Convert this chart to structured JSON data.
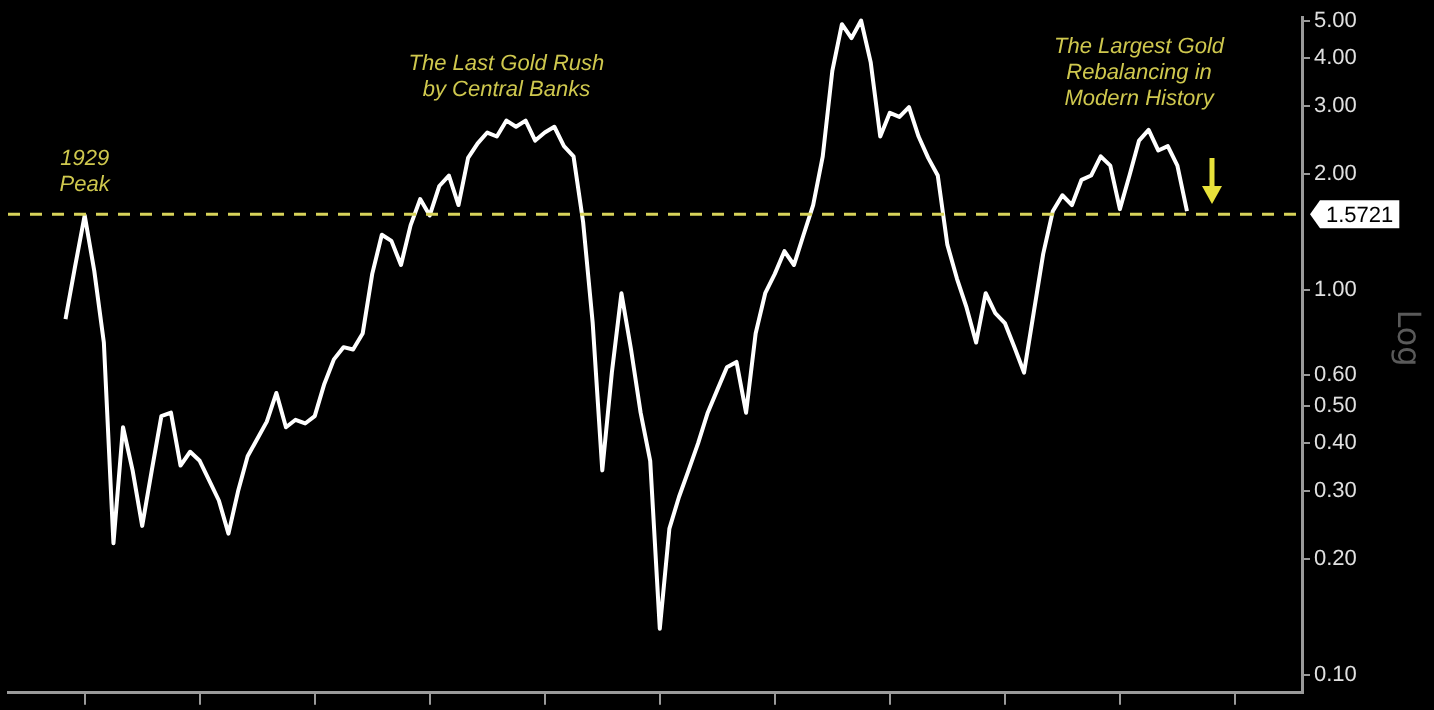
{
  "chart_data": {
    "type": "line",
    "log": "y",
    "tick_labels": "y",
    "marker": "none",
    "line_style": "solid",
    "categories": [
      null,
      null,
      null,
      null,
      null,
      null,
      null,
      null,
      null,
      null,
      null,
      null,
      null,
      null,
      null,
      null,
      null,
      null,
      null,
      null,
      null,
      null,
      null,
      null,
      null,
      null,
      null,
      null,
      null,
      null,
      null,
      null,
      null,
      null,
      null,
      null,
      null,
      null,
      null,
      null,
      null,
      null,
      null,
      null,
      null,
      null,
      null,
      null,
      null,
      null,
      null,
      null,
      null,
      null,
      null,
      null,
      null,
      null,
      null,
      null,
      null,
      null,
      null,
      null,
      null,
      null,
      null,
      null,
      null,
      null,
      null,
      null,
      null,
      null,
      null,
      null,
      null,
      null,
      null,
      null,
      null,
      null,
      null,
      null,
      null,
      null,
      null,
      null,
      null,
      null,
      null,
      null,
      null,
      null,
      null,
      null,
      null,
      null,
      null,
      null,
      null,
      null,
      null,
      null,
      null,
      null,
      null,
      null,
      null,
      null,
      null,
      null,
      null,
      null,
      null,
      null,
      null,
      null
    ],
    "ylim": [
      0.09,
      5.1
    ],
    "yticks": [
      {
        "value": 0.1,
        "label": "0.10"
      },
      {
        "value": 0.2,
        "label": "0.20"
      },
      {
        "value": 0.3,
        "label": "0.30"
      },
      {
        "value": 0.4,
        "label": "0.40"
      },
      {
        "value": 0.5,
        "label": "0.50"
      },
      {
        "value": 0.6,
        "label": "0.60"
      },
      {
        "value": 1,
        "label": "1.00"
      },
      {
        "value": 2,
        "label": "2.00"
      },
      {
        "value": 3,
        "label": "3.00"
      },
      {
        "value": 4,
        "label": "4.00"
      },
      {
        "value": 5,
        "label": "5.00"
      }
    ],
    "series": [
      {
        "color": "#ffffff",
        "values": [
          0.84,
          1.15,
          1.56,
          1.12,
          0.73,
          0.22,
          0.44,
          0.34,
          0.244,
          0.34,
          0.47,
          0.48,
          0.35,
          0.38,
          0.36,
          0.32,
          0.284,
          0.233,
          0.3,
          0.37,
          0.41,
          0.455,
          0.54,
          0.44,
          0.46,
          0.45,
          0.47,
          0.57,
          0.66,
          0.71,
          0.7,
          0.77,
          1.1,
          1.39,
          1.34,
          1.16,
          1.47,
          1.72,
          1.56,
          1.86,
          1.98,
          1.66,
          2.2,
          2.4,
          2.56,
          2.5,
          2.75,
          2.65,
          2.75,
          2.44,
          2.56,
          2.65,
          2.36,
          2.22,
          1.5,
          0.82,
          0.34,
          0.61,
          0.98,
          0.7,
          0.48,
          0.36,
          0.132,
          0.24,
          0.29,
          0.34,
          0.4,
          0.48,
          0.55,
          0.63,
          0.65,
          0.48,
          0.77,
          0.98,
          1.1,
          1.26,
          1.16,
          1.39,
          1.66,
          2.22,
          3.7,
          4.89,
          4.5,
          5.0,
          3.9,
          2.5,
          2.88,
          2.81,
          2.98,
          2.5,
          2.2,
          1.98,
          1.31,
          1.07,
          0.9,
          0.73,
          0.98,
          0.87,
          0.82,
          0.71,
          0.61,
          0.87,
          1.24,
          1.6,
          1.76,
          1.66,
          1.93,
          1.98,
          2.22,
          2.1,
          1.62,
          1.98,
          2.44,
          2.6,
          2.3,
          2.36,
          2.1,
          1.6
        ]
      }
    ],
    "ref_lines": [
      {
        "axis": "y",
        "value": 1.5721,
        "label": "1.5721",
        "color": "#d8d35a",
        "line_style": "dashed"
      }
    ],
    "annotations": [
      "1929\nPeak",
      "The Last Gold Rush\nby Central Banks",
      "The Largest Gold\nRebalancing in\nModern History",
      "Log"
    ]
  }
}
